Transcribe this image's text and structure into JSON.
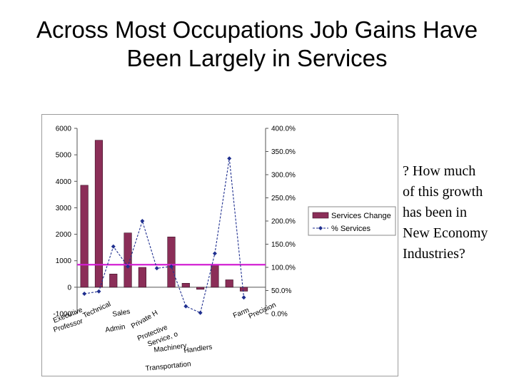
{
  "slide": {
    "title_line1": "Across Most Occupations Job Gains Have",
    "title_line2": "Been Largely in Services",
    "note_lines": [
      "? How much",
      "of this growth",
      "has been in",
      "New Economy",
      "Industries?"
    ]
  },
  "chart_data": {
    "type": "bar",
    "categories": [
      "Executive",
      "Professional",
      "Technical",
      "Sales",
      "Admin Support",
      "Private HH",
      "Protective Svcs",
      "Service, other",
      "Farming",
      "Precision production",
      "Machine Operators",
      "Transportation/Material moving",
      "Handlers/Laborers"
    ],
    "category_labels_visible": [
      "Executive",
      "Professor",
      "Technical",
      "Sales",
      "Admin",
      "Private H",
      "Protective",
      "Service, o",
      "Farm",
      "Precision",
      "Machinery",
      "Transportation",
      "Handlers"
    ],
    "series": [
      {
        "name": "Services Change",
        "axis": "left",
        "kind": "bar",
        "color": "#8b2e58",
        "values": [
          3850,
          5550,
          500,
          2050,
          750,
          0,
          1900,
          150,
          -80,
          850,
          280,
          -150,
          0
        ]
      },
      {
        "name": "% Services",
        "axis": "right",
        "kind": "line",
        "color": "#1f2f8f",
        "values": [
          0.43,
          0.48,
          1.45,
          1.02,
          2.0,
          0.98,
          1.02,
          0.16,
          0.02,
          1.3,
          3.35,
          0.35,
          null
        ]
      }
    ],
    "reference_line": {
      "axis": "left",
      "value": 850,
      "color": "#d21fd2"
    },
    "left_axis": {
      "min": -1000,
      "max": 6000,
      "ticks": [
        "-1000",
        "0",
        "1000",
        "2000",
        "3000",
        "4000",
        "5000",
        "6000"
      ]
    },
    "right_axis": {
      "min": 0,
      "max": 4,
      "ticks": [
        "0.0%",
        "50.0%",
        "100.0%",
        "150.0%",
        "200.0%",
        "250.0%",
        "300.0%",
        "350.0%",
        "400.0%"
      ]
    },
    "legend": {
      "placement": "right",
      "entries": [
        {
          "label": "Services Change",
          "kind": "bar",
          "color": "#8b2e58"
        },
        {
          "label": "% Services",
          "kind": "line",
          "color": "#1f2f8f"
        }
      ]
    },
    "grid": false
  }
}
